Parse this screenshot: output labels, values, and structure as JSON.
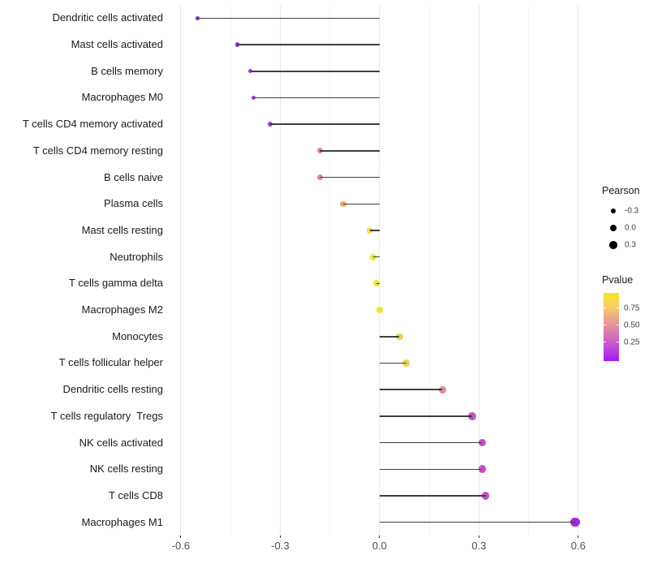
{
  "chart_data": {
    "type": "scatter",
    "subtype": "lollipop",
    "title": "",
    "xlabel": "",
    "ylabel": "",
    "xlim": [
      -0.612,
      0.642
    ],
    "x_ticks": [
      {
        "label": "-0.6",
        "value": -0.6
      },
      {
        "label": "-0.3",
        "value": -0.3
      },
      {
        "label": "0.0",
        "value": 0.0
      },
      {
        "label": "0.3",
        "value": 0.3
      },
      {
        "label": "0.6",
        "value": 0.6
      }
    ],
    "x_minor_ticks": [
      -0.45,
      -0.15,
      0.15,
      0.45
    ],
    "grid": true,
    "points": [
      {
        "label": "Dendritic cells activated",
        "pearson": -0.55,
        "color": "#9930CC"
      },
      {
        "label": "Mast cells activated",
        "pearson": -0.43,
        "color": "#A32CD9"
      },
      {
        "label": "B cells memory",
        "pearson": -0.39,
        "color": "#A636D8"
      },
      {
        "label": "Macrophages M0",
        "pearson": -0.38,
        "color": "#A636D8"
      },
      {
        "label": "T cells CD4 memory activated",
        "pearson": -0.33,
        "color": "#AC3AD8"
      },
      {
        "label": "T cells CD4 memory resting",
        "pearson": -0.18,
        "color": "#D98D97"
      },
      {
        "label": "B cells naive",
        "pearson": -0.18,
        "color": "#D98D97"
      },
      {
        "label": "Plasma cells",
        "pearson": -0.11,
        "color": "#EBAA66"
      },
      {
        "label": "Mast cells resting",
        "pearson": -0.03,
        "color": "#F0E435"
      },
      {
        "label": "Neutrophils",
        "pearson": -0.02,
        "color": "#F0E435"
      },
      {
        "label": "T cells gamma delta",
        "pearson": -0.01,
        "color": "#F2E52E"
      },
      {
        "label": "Macrophages M2",
        "pearson": 0.0,
        "color": "#F2E52E"
      },
      {
        "label": "Monocytes",
        "pearson": 0.06,
        "color": "#F1D150"
      },
      {
        "label": "T cells follicular helper",
        "pearson": 0.08,
        "color": "#F1D150"
      },
      {
        "label": "Dendritic cells resting",
        "pearson": 0.19,
        "color": "#DE8A94"
      },
      {
        "label": "T cells regulatory  Tregs",
        "pearson": 0.28,
        "color": "#C553C3"
      },
      {
        "label": "NK cells activated",
        "pearson": 0.31,
        "color": "#C44EC6"
      },
      {
        "label": "NK cells resting",
        "pearson": 0.31,
        "color": "#C44EC6"
      },
      {
        "label": "T cells CD8",
        "pearson": 0.32,
        "color": "#C44EC6"
      },
      {
        "label": "Macrophages M1",
        "pearson": 0.59,
        "color": "#A428E0"
      }
    ],
    "legend_size": {
      "title": "Pearson",
      "items": [
        {
          "label": "-0.3",
          "value": -0.3
        },
        {
          "label": "0.0",
          "value": 0.0
        },
        {
          "label": "0.3",
          "value": 0.3
        }
      ]
    },
    "legend_color": {
      "title": "Pvalue",
      "ticks": [
        {
          "label": "0.75",
          "pos": 0.226
        },
        {
          "label": "0.50",
          "pos": 0.476
        },
        {
          "label": "0.25",
          "pos": 0.726
        }
      ],
      "gradient_top_to_bottom": [
        "#F9E723",
        "#F6CE69",
        "#E9A28C",
        "#D878B0",
        "#BE4ADB",
        "#A41BF0"
      ]
    }
  },
  "colors": {
    "grid_major": "#e9e9e9",
    "grid_minor": "#f4f4f4",
    "stem": "#3f3f3f",
    "axis_tick": "#333333",
    "axis_tick_label": "#4d4d4d",
    "category_label": "#1a1a1a",
    "legend_dot": "#000000",
    "background": "#ffffff"
  }
}
